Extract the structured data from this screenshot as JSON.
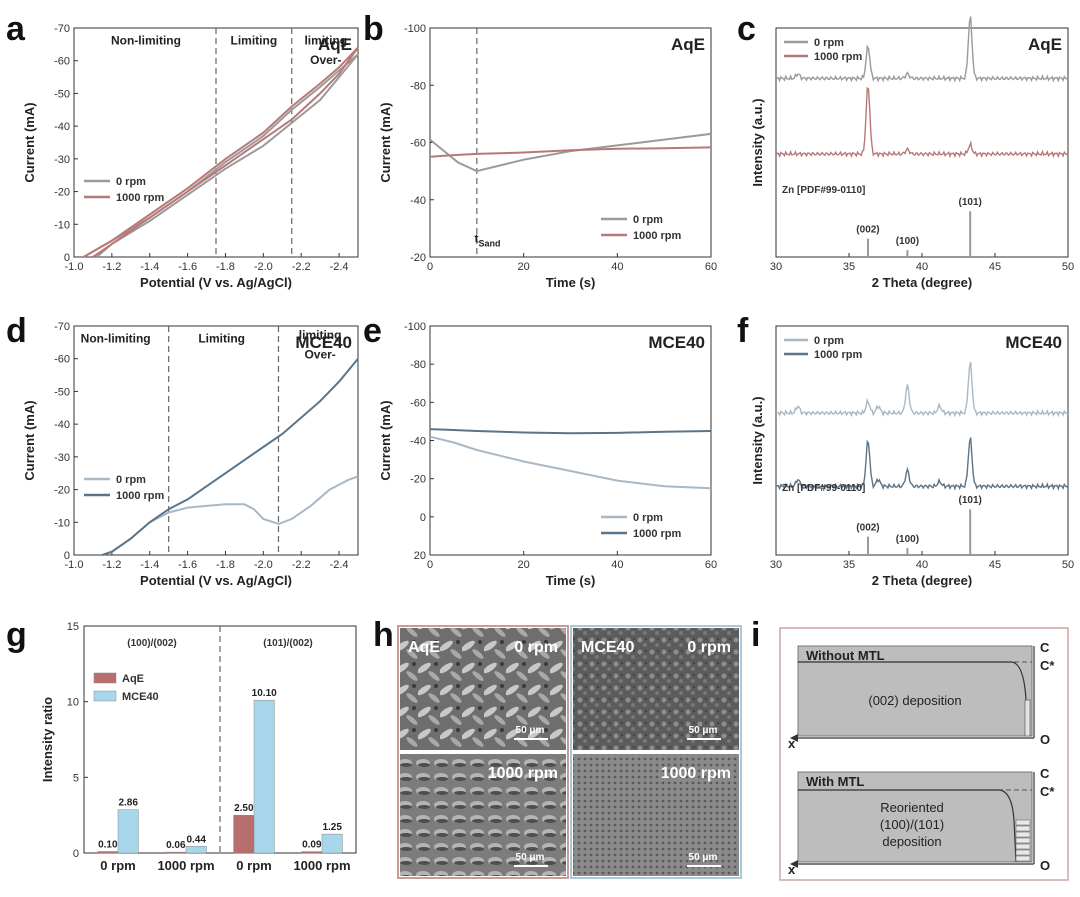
{
  "colors": {
    "aqe_1000": "#b87878",
    "aqe_0": "#9a9a9a",
    "mce_1000": "#5a7488",
    "mce_0": "#a9b8c4",
    "bar_aqe": "#b86e6e",
    "bar_mce": "#a8d6ea"
  },
  "panel_letters": {
    "a": "a",
    "b": "b",
    "c": "c",
    "d": "d",
    "e": "e",
    "f": "f",
    "g": "g",
    "h": "h",
    "i": "i"
  },
  "chart_data": [
    {
      "id": "a",
      "type": "line",
      "title": "AqE",
      "xlabel": "Potential (V vs. Ag/AgCl)",
      "ylabel": "Current (mA)",
      "xlim": [
        -1.0,
        -2.5
      ],
      "ylim": [
        -70,
        0
      ],
      "xticks": [
        -1.0,
        -1.2,
        -1.4,
        -1.6,
        -1.8,
        -2.0,
        -2.2,
        -2.4
      ],
      "xtick_labels": [
        "-1.0",
        "-1.2",
        "-1.4",
        "-1.6",
        "-1.8",
        "-2.0",
        "-2.2",
        "-2.4"
      ],
      "yticks": [
        0,
        -10,
        -20,
        -30,
        -40,
        -50,
        -60,
        -70
      ],
      "ytick_labels": [
        "0",
        "-10",
        "-20",
        "-30",
        "-40",
        "-50",
        "-60",
        "-70"
      ],
      "dashed_x": [
        -1.75,
        -2.15
      ],
      "regions": [
        {
          "label": "Non-limiting",
          "x": -1.38,
          "y": -65
        },
        {
          "label": "Limiting",
          "x": -1.95,
          "y": -65
        },
        {
          "label": "Over-",
          "x": -2.33,
          "y": -59
        },
        {
          "label": "limiting",
          "x": -2.33,
          "y": -65
        }
      ],
      "legend": [
        "0 rpm",
        "1000 rpm"
      ],
      "series": [
        {
          "name": "0 rpm",
          "color_key": "aqe_0",
          "points": [
            [
              -1.12,
              0
            ],
            [
              -1.2,
              -4
            ],
            [
              -1.4,
              -11
            ],
            [
              -1.6,
              -19
            ],
            [
              -1.8,
              -27
            ],
            [
              -2.0,
              -34
            ],
            [
              -2.15,
              -41
            ],
            [
              -2.3,
              -48
            ],
            [
              -2.4,
              -55
            ],
            [
              -2.5,
              -62
            ],
            [
              -2.4,
              -57
            ],
            [
              -2.3,
              -52
            ],
            [
              -2.15,
              -45
            ],
            [
              -2.0,
              -37
            ],
            [
              -1.8,
              -29
            ],
            [
              -1.6,
              -20
            ],
            [
              -1.4,
              -12
            ],
            [
              -1.2,
              -5
            ],
            [
              -1.05,
              0
            ]
          ]
        },
        {
          "name": "1000 rpm",
          "color_key": "aqe_1000",
          "points": [
            [
              -1.1,
              0
            ],
            [
              -1.2,
              -4
            ],
            [
              -1.4,
              -12
            ],
            [
              -1.6,
              -20
            ],
            [
              -1.8,
              -28
            ],
            [
              -2.0,
              -36
            ],
            [
              -2.15,
              -42
            ],
            [
              -2.3,
              -50
            ],
            [
              -2.4,
              -56
            ],
            [
              -2.5,
              -64
            ],
            [
              -2.4,
              -58
            ],
            [
              -2.3,
              -53
            ],
            [
              -2.15,
              -46
            ],
            [
              -2.0,
              -38
            ],
            [
              -1.8,
              -30
            ],
            [
              -1.6,
              -21
            ],
            [
              -1.4,
              -13
            ],
            [
              -1.2,
              -5
            ],
            [
              -1.05,
              0
            ]
          ]
        }
      ]
    },
    {
      "id": "b",
      "type": "line",
      "title": "AqE",
      "xlabel": "Time (s)",
      "ylabel": "Current (mA)",
      "xlim": [
        0,
        60
      ],
      "ylim": [
        -100,
        -20
      ],
      "xticks": [
        0,
        20,
        40,
        60
      ],
      "xtick_labels": [
        "0",
        "20",
        "40",
        "60"
      ],
      "yticks": [
        -100,
        -80,
        -60,
        -40,
        -20
      ],
      "ytick_labels": [
        "-100",
        "-80",
        "-60",
        "-40",
        "-20"
      ],
      "dashed_x": [
        10
      ],
      "annotation": {
        "text": "t",
        "sub": "Sand",
        "x": 9.5,
        "y": -25
      },
      "legend": [
        "0 rpm",
        "1000 rpm"
      ],
      "series": [
        {
          "name": "0 rpm",
          "color_key": "aqe_0",
          "points": [
            [
              0,
              -61
            ],
            [
              3,
              -57
            ],
            [
              6,
              -53
            ],
            [
              10,
              -50
            ],
            [
              15,
              -52
            ],
            [
              20,
              -54
            ],
            [
              30,
              -57
            ],
            [
              40,
              -59
            ],
            [
              50,
              -61
            ],
            [
              60,
              -63
            ]
          ]
        },
        {
          "name": "1000 rpm",
          "color_key": "aqe_1000",
          "points": [
            [
              0,
              -55
            ],
            [
              5,
              -55.6
            ],
            [
              10,
              -56
            ],
            [
              20,
              -56.5
            ],
            [
              30,
              -57.3
            ],
            [
              40,
              -57.8
            ],
            [
              50,
              -58
            ],
            [
              60,
              -58.3
            ]
          ]
        }
      ]
    },
    {
      "id": "c",
      "type": "line",
      "title": "AqE",
      "xlabel": "2 Theta (degree)",
      "ylabel": "Intensity (a.u.)",
      "xlim": [
        30,
        50
      ],
      "xticks": [
        30,
        35,
        40,
        45,
        50
      ],
      "xtick_labels": [
        "30",
        "35",
        "40",
        "45",
        "50"
      ],
      "legend": [
        "0 rpm",
        "1000 rpm"
      ],
      "series": [
        {
          "name": "0 rpm",
          "color_key": "aqe_0",
          "baseline": 0.78,
          "peaks": [
            [
              31.5,
              0.02
            ],
            [
              36.3,
              0.14
            ],
            [
              39.0,
              0.02
            ],
            [
              43.3,
              0.27
            ]
          ]
        },
        {
          "name": "1000 rpm",
          "color_key": "aqe_1000",
          "baseline": 0.45,
          "peaks": [
            [
              36.3,
              0.3
            ],
            [
              39.0,
              0.02
            ],
            [
              43.3,
              0.04
            ]
          ]
        }
      ],
      "reference": {
        "label": "Zn [PDF#99-0110]",
        "lines": [
          {
            "x": 36.3,
            "h": 0.08,
            "label": "(002)"
          },
          {
            "x": 39.0,
            "h": 0.03,
            "label": "(100)"
          },
          {
            "x": 43.3,
            "h": 0.2,
            "label": "(101)"
          }
        ]
      }
    },
    {
      "id": "d",
      "type": "line",
      "title": "MCE40",
      "xlabel": "Potential (V vs. Ag/AgCl)",
      "ylabel": "Current (mA)",
      "xlim": [
        -1.0,
        -2.5
      ],
      "ylim": [
        -70,
        0
      ],
      "xticks": [
        -1.0,
        -1.2,
        -1.4,
        -1.6,
        -1.8,
        -2.0,
        -2.2,
        -2.4
      ],
      "xtick_labels": [
        "-1.0",
        "-1.2",
        "-1.4",
        "-1.6",
        "-1.8",
        "-2.0",
        "-2.2",
        "-2.4"
      ],
      "yticks": [
        0,
        -10,
        -20,
        -30,
        -40,
        -50,
        -60,
        -70
      ],
      "ytick_labels": [
        "0",
        "-10",
        "-20",
        "-30",
        "-40",
        "-50",
        "-60",
        "-70"
      ],
      "dashed_x": [
        -1.5,
        -2.08
      ],
      "regions": [
        {
          "label": "Non-limiting",
          "x": -1.22,
          "y": -65
        },
        {
          "label": "Limiting",
          "x": -1.78,
          "y": -65
        },
        {
          "label": "Over-",
          "x": -2.3,
          "y": -60
        },
        {
          "label": "limiting",
          "x": -2.3,
          "y": -66
        }
      ],
      "legend": [
        "0 rpm",
        "1000 rpm"
      ],
      "series": [
        {
          "name": "0 rpm",
          "color_key": "mce_0",
          "points": [
            [
              -1.15,
              0
            ],
            [
              -1.2,
              -1
            ],
            [
              -1.3,
              -5
            ],
            [
              -1.4,
              -10
            ],
            [
              -1.5,
              -13
            ],
            [
              -1.6,
              -14.5
            ],
            [
              -1.7,
              -15
            ],
            [
              -1.8,
              -15.5
            ],
            [
              -1.9,
              -15.5
            ],
            [
              -1.95,
              -14
            ],
            [
              -2.0,
              -11
            ],
            [
              -2.08,
              -9.5
            ],
            [
              -2.15,
              -11
            ],
            [
              -2.25,
              -15
            ],
            [
              -2.35,
              -20
            ],
            [
              -2.45,
              -23
            ],
            [
              -2.5,
              -24
            ]
          ]
        },
        {
          "name": "1000 rpm",
          "color_key": "mce_1000",
          "points": [
            [
              -1.15,
              0
            ],
            [
              -1.2,
              -1
            ],
            [
              -1.3,
              -5
            ],
            [
              -1.4,
              -10
            ],
            [
              -1.5,
              -14
            ],
            [
              -1.6,
              -17
            ],
            [
              -1.7,
              -21
            ],
            [
              -1.8,
              -25
            ],
            [
              -1.9,
              -29
            ],
            [
              -2.0,
              -33
            ],
            [
              -2.1,
              -37
            ],
            [
              -2.2,
              -42
            ],
            [
              -2.3,
              -47
            ],
            [
              -2.4,
              -53
            ],
            [
              -2.5,
              -60
            ]
          ]
        }
      ]
    },
    {
      "id": "e",
      "type": "line",
      "title": "MCE40",
      "xlabel": "Time (s)",
      "ylabel": "Current (mA)",
      "xlim": [
        0,
        60
      ],
      "ylim": [
        -100,
        20
      ],
      "xticks": [
        0,
        20,
        40,
        60
      ],
      "xtick_labels": [
        "0",
        "20",
        "40",
        "60"
      ],
      "yticks": [
        -100,
        -80,
        -60,
        -40,
        -20,
        0,
        20
      ],
      "ytick_labels": [
        "-100",
        "-80",
        "-60",
        "-40",
        "-20",
        "0",
        "20"
      ],
      "legend": [
        "0 rpm",
        "1000 rpm"
      ],
      "series": [
        {
          "name": "0 rpm",
          "color_key": "mce_0",
          "points": [
            [
              0,
              -42
            ],
            [
              5,
              -39
            ],
            [
              10,
              -35
            ],
            [
              20,
              -29
            ],
            [
              30,
              -24
            ],
            [
              40,
              -19
            ],
            [
              50,
              -16
            ],
            [
              60,
              -15
            ]
          ]
        },
        {
          "name": "1000 rpm",
          "color_key": "mce_1000",
          "points": [
            [
              0,
              -46
            ],
            [
              5,
              -45.5
            ],
            [
              10,
              -45
            ],
            [
              20,
              -44.2
            ],
            [
              30,
              -43.8
            ],
            [
              40,
              -44
            ],
            [
              50,
              -44.6
            ],
            [
              60,
              -45
            ]
          ]
        }
      ]
    },
    {
      "id": "f",
      "type": "line",
      "title": "MCE40",
      "xlabel": "2 Theta (degree)",
      "ylabel": "Intensity (a.u.)",
      "xlim": [
        30,
        50
      ],
      "xticks": [
        30,
        35,
        40,
        45,
        50
      ],
      "xtick_labels": [
        "30",
        "35",
        "40",
        "45",
        "50"
      ],
      "legend": [
        "0 rpm",
        "1000 rpm"
      ],
      "series": [
        {
          "name": "0 rpm",
          "color_key": "mce_0",
          "baseline": 0.62,
          "peaks": [
            [
              31.5,
              0.03
            ],
            [
              36.3,
              0.05
            ],
            [
              37.0,
              0.03
            ],
            [
              39.0,
              0.12
            ],
            [
              41.2,
              0.03
            ],
            [
              43.3,
              0.22
            ]
          ]
        },
        {
          "name": "1000 rpm",
          "color_key": "mce_1000",
          "baseline": 0.3,
          "peaks": [
            [
              31.5,
              0.03
            ],
            [
              36.3,
              0.2
            ],
            [
              37.0,
              0.03
            ],
            [
              39.0,
              0.07
            ],
            [
              41.2,
              0.02
            ],
            [
              43.3,
              0.21
            ]
          ]
        }
      ],
      "reference": {
        "label": "Zn [PDF#99-0110]",
        "lines": [
          {
            "x": 36.3,
            "h": 0.08,
            "label": "(002)"
          },
          {
            "x": 39.0,
            "h": 0.03,
            "label": "(100)"
          },
          {
            "x": 43.3,
            "h": 0.2,
            "label": "(101)"
          }
        ]
      }
    },
    {
      "id": "g",
      "type": "bar",
      "xlabel": "",
      "ylabel": "Intensity ratio",
      "ylim": [
        0,
        15
      ],
      "yticks": [
        0,
        5,
        10,
        15
      ],
      "ytick_labels": [
        "0",
        "5",
        "10",
        "15"
      ],
      "categories": [
        "0 rpm",
        "1000 rpm",
        "0 rpm",
        "1000 rpm"
      ],
      "group_labels": [
        "(100)/(002)",
        "(101)/(002)"
      ],
      "legend": [
        "AqE",
        "MCE40"
      ],
      "series": [
        {
          "name": "AqE",
          "color_key": "bar_aqe",
          "values": [
            0.1,
            0.06,
            2.5,
            0.09
          ],
          "labels": [
            "0.10",
            "0.06",
            "2.50",
            "0.09"
          ]
        },
        {
          "name": "MCE40",
          "color_key": "bar_mce",
          "values": [
            2.86,
            0.44,
            10.1,
            1.25
          ],
          "labels": [
            "2.86",
            "0.44",
            "10.10",
            "1.25"
          ]
        }
      ]
    }
  ],
  "sem": {
    "aqe_label": "AqE",
    "mce_label": "MCE40",
    "rpm_0": "0 rpm",
    "rpm_1000": "1000 rpm",
    "scale": "50 μm"
  },
  "schematic": {
    "top_title": "Without MTL",
    "top_text": "(002) deposition",
    "bottom_title": "With MTL",
    "bottom_text": [
      "Reoriented",
      "(100)/(101)",
      "deposition"
    ],
    "c_label": "C",
    "cstar_label": "C*",
    "o_label": "O",
    "x_label": "x"
  }
}
